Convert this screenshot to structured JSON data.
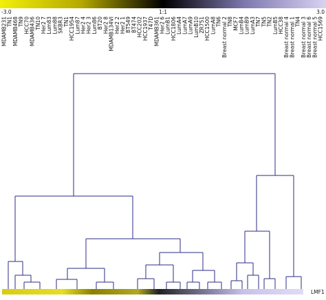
{
  "colorbar": {
    "min_label": "-3.0",
    "mid_label": "1:1",
    "max_label": "3.0"
  },
  "samples": [
    "MDAMB231",
    "TN1",
    "MDAMB468",
    "TN9",
    "HCC70",
    "MDAMB436",
    "TN10",
    "Her2 7",
    "Lum83",
    "Lum88",
    "SKBR3",
    "TN1",
    "HCC1954",
    "Lum87",
    "Her2 4",
    "Her2 3",
    "Lum86",
    "BT20",
    "Her2 8",
    "MDAMB134VI",
    "Her2 2",
    "Her2 1",
    "BT549",
    "BT474",
    "HCC202",
    "HCC1937",
    "T47D",
    "MDAMB361",
    "Her2 6",
    "LumB1",
    "HCC1806",
    "LumA4",
    "LumA7",
    "LumA9",
    "LumB10",
    "ZR751",
    "HCC1500",
    "LumA8",
    "TN6",
    "Breast normal 2",
    "TN8",
    "MCF7",
    "LumB4",
    "LumB9",
    "LumA3",
    "TN7",
    "TN5",
    "TN2",
    "LumB5",
    "HCC38",
    "Breast normal 4",
    "Breast normal 1",
    "TN4",
    "Breast normal 3",
    "Breast normal 6",
    "Breast normal 5",
    "HCC1569"
  ],
  "row_label": "LMF1"
}
